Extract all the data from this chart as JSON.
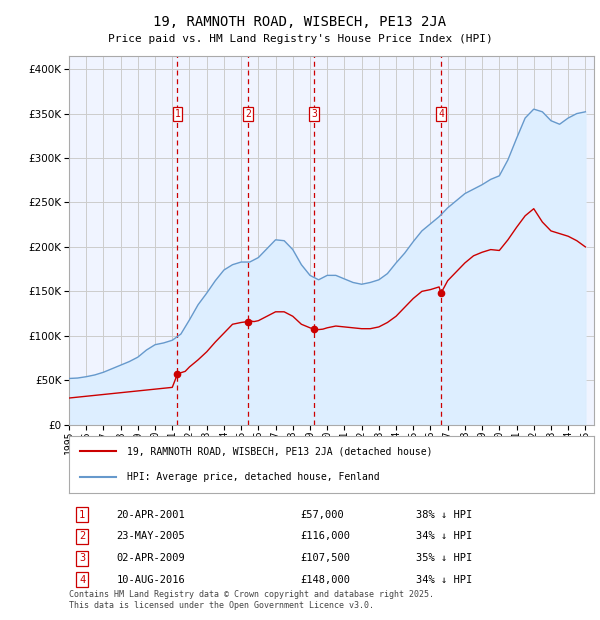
{
  "title": "19, RAMNOTH ROAD, WISBECH, PE13 2JA",
  "subtitle": "Price paid vs. HM Land Registry's House Price Index (HPI)",
  "ytick_values": [
    0,
    50000,
    100000,
    150000,
    200000,
    250000,
    300000,
    350000,
    400000
  ],
  "ylim": [
    0,
    415000
  ],
  "xlim_start": 1995.0,
  "xlim_end": 2025.5,
  "sale_dates": [
    2001.3,
    2005.39,
    2009.25,
    2016.61
  ],
  "sale_prices": [
    57000,
    116000,
    107500,
    148000
  ],
  "sale_labels": [
    "1",
    "2",
    "3",
    "4"
  ],
  "sale_date_strs": [
    "20-APR-2001",
    "23-MAY-2005",
    "02-APR-2009",
    "10-AUG-2016"
  ],
  "sale_price_strs": [
    "£57,000",
    "£116,000",
    "£107,500",
    "£148,000"
  ],
  "sale_pct_strs": [
    "38% ↓ HPI",
    "34% ↓ HPI",
    "35% ↓ HPI",
    "34% ↓ HPI"
  ],
  "legend_line1": "19, RAMNOTH ROAD, WISBECH, PE13 2JA (detached house)",
  "legend_line2": "HPI: Average price, detached house, Fenland",
  "footer": "Contains HM Land Registry data © Crown copyright and database right 2025.\nThis data is licensed under the Open Government Licence v3.0.",
  "line_color_red": "#cc0000",
  "line_color_blue": "#6699cc",
  "fill_color_blue": "#ddeeff",
  "marker_box_color": "#cc0000",
  "vline_color": "#cc0000",
  "background_color": "#ffffff",
  "plot_bg_color": "#f0f4ff",
  "grid_color": "#cccccc",
  "hpi_data_x": [
    1995.0,
    1995.5,
    1996.0,
    1996.5,
    1997.0,
    1997.5,
    1998.0,
    1998.5,
    1999.0,
    1999.5,
    2000.0,
    2000.5,
    2001.0,
    2001.5,
    2002.0,
    2002.5,
    2003.0,
    2003.5,
    2004.0,
    2004.5,
    2005.0,
    2005.5,
    2006.0,
    2006.5,
    2007.0,
    2007.5,
    2008.0,
    2008.5,
    2009.0,
    2009.5,
    2010.0,
    2010.5,
    2011.0,
    2011.5,
    2012.0,
    2012.5,
    2013.0,
    2013.5,
    2014.0,
    2014.5,
    2015.0,
    2015.5,
    2016.0,
    2016.5,
    2017.0,
    2017.5,
    2018.0,
    2018.5,
    2019.0,
    2019.5,
    2020.0,
    2020.5,
    2021.0,
    2021.5,
    2022.0,
    2022.5,
    2023.0,
    2023.5,
    2024.0,
    2024.5,
    2025.0
  ],
  "hpi_data_y": [
    52000,
    52500,
    54000,
    56000,
    59000,
    63000,
    67000,
    71000,
    76000,
    84000,
    90000,
    92000,
    95000,
    102000,
    118000,
    135000,
    148000,
    162000,
    174000,
    180000,
    183000,
    183000,
    188000,
    198000,
    208000,
    207000,
    197000,
    180000,
    168000,
    163000,
    168000,
    168000,
    164000,
    160000,
    158000,
    160000,
    163000,
    170000,
    182000,
    193000,
    206000,
    218000,
    226000,
    234000,
    244000,
    252000,
    260000,
    265000,
    270000,
    276000,
    280000,
    298000,
    322000,
    345000,
    355000,
    352000,
    342000,
    338000,
    345000,
    350000,
    352000
  ],
  "red_data_x": [
    1995.0,
    1995.5,
    1996.0,
    1996.5,
    1997.0,
    1997.5,
    1998.0,
    1998.5,
    1999.0,
    1999.5,
    2000.0,
    2000.5,
    2001.0,
    2001.3,
    2001.5,
    2001.75,
    2002.0,
    2002.5,
    2003.0,
    2003.5,
    2004.0,
    2004.5,
    2005.0,
    2005.39,
    2005.6,
    2005.75,
    2006.0,
    2006.5,
    2007.0,
    2007.5,
    2008.0,
    2008.5,
    2009.0,
    2009.25,
    2009.5,
    2009.75,
    2010.0,
    2010.5,
    2011.0,
    2011.5,
    2012.0,
    2012.5,
    2013.0,
    2013.5,
    2014.0,
    2014.5,
    2015.0,
    2015.5,
    2016.0,
    2016.5,
    2016.61,
    2017.0,
    2017.5,
    2018.0,
    2018.5,
    2019.0,
    2019.5,
    2020.0,
    2020.5,
    2021.0,
    2021.5,
    2022.0,
    2022.5,
    2023.0,
    2023.5,
    2024.0,
    2024.5,
    2025.0
  ],
  "red_data_y": [
    30000,
    31000,
    32000,
    33000,
    34000,
    35000,
    36000,
    37000,
    38000,
    39000,
    40000,
    41000,
    42000,
    57000,
    58500,
    60000,
    65000,
    73000,
    82000,
    93000,
    103000,
    113000,
    115000,
    116000,
    116500,
    116000,
    117000,
    122000,
    127000,
    127000,
    122000,
    113000,
    109000,
    107500,
    107000,
    107500,
    109000,
    111000,
    110000,
    109000,
    108000,
    108000,
    110000,
    115000,
    122000,
    132000,
    142000,
    150000,
    152000,
    155000,
    148000,
    162000,
    172000,
    182000,
    190000,
    194000,
    197000,
    196000,
    208000,
    222000,
    235000,
    243000,
    228000,
    218000,
    215000,
    212000,
    207000,
    200000
  ]
}
